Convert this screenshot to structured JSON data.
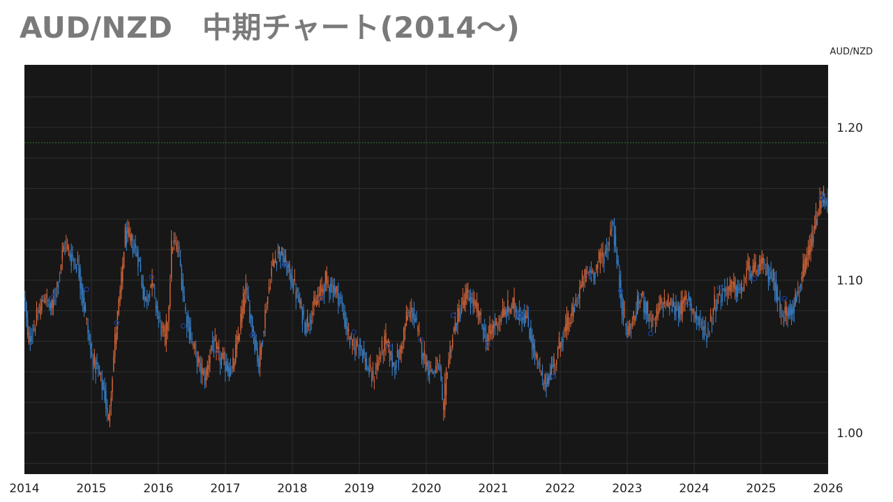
{
  "header": {
    "title": "AUD/NZD　中期チャート(2014～)"
  },
  "chart_data": {
    "type": "candlestick",
    "title": "AUD/NZD　中期チャート(2014～)",
    "series_label": "AUD/NZD",
    "xlabel": "",
    "ylabel": "",
    "x_tick_labels": [
      "2014",
      "2015",
      "2016",
      "2017",
      "2018",
      "2019",
      "2020",
      "2021",
      "2022",
      "2023",
      "2024",
      "2025",
      "2026"
    ],
    "y_tick_labels": [
      "1.20",
      "1.10",
      "1.00"
    ],
    "xlim": [
      2014,
      2026
    ],
    "ylim": [
      0.973,
      1.241
    ],
    "grid": true,
    "background": "#171717",
    "colors": {
      "up": "#e0693a",
      "down": "#3a88d6",
      "marker": "#1e3a8a",
      "ref_line": "#2e7d32"
    },
    "reference_line": 1.19,
    "path": [
      [
        2014.0,
        1.09
      ],
      [
        2014.05,
        1.06
      ],
      [
        2014.15,
        1.07
      ],
      [
        2014.3,
        1.09
      ],
      [
        2014.4,
        1.08
      ],
      [
        2014.5,
        1.1
      ],
      [
        2014.6,
        1.125
      ],
      [
        2014.7,
        1.115
      ],
      [
        2014.8,
        1.11
      ],
      [
        2014.9,
        1.08
      ],
      [
        2015.0,
        1.05
      ],
      [
        2015.1,
        1.04
      ],
      [
        2015.2,
        1.025
      ],
      [
        2015.25,
        1.005
      ],
      [
        2015.35,
        1.06
      ],
      [
        2015.45,
        1.1
      ],
      [
        2015.5,
        1.13
      ],
      [
        2015.6,
        1.125
      ],
      [
        2015.7,
        1.115
      ],
      [
        2015.8,
        1.085
      ],
      [
        2015.9,
        1.1
      ],
      [
        2016.0,
        1.075
      ],
      [
        2016.1,
        1.06
      ],
      [
        2016.15,
        1.08
      ],
      [
        2016.2,
        1.125
      ],
      [
        2016.3,
        1.12
      ],
      [
        2016.4,
        1.08
      ],
      [
        2016.5,
        1.06
      ],
      [
        2016.6,
        1.045
      ],
      [
        2016.7,
        1.035
      ],
      [
        2016.8,
        1.06
      ],
      [
        2016.9,
        1.05
      ],
      [
        2017.0,
        1.045
      ],
      [
        2017.1,
        1.04
      ],
      [
        2017.2,
        1.065
      ],
      [
        2017.3,
        1.095
      ],
      [
        2017.4,
        1.07
      ],
      [
        2017.5,
        1.045
      ],
      [
        2017.6,
        1.08
      ],
      [
        2017.7,
        1.11
      ],
      [
        2017.8,
        1.12
      ],
      [
        2017.9,
        1.11
      ],
      [
        2018.0,
        1.1
      ],
      [
        2018.1,
        1.085
      ],
      [
        2018.2,
        1.07
      ],
      [
        2018.3,
        1.08
      ],
      [
        2018.4,
        1.09
      ],
      [
        2018.5,
        1.1
      ],
      [
        2018.6,
        1.095
      ],
      [
        2018.7,
        1.09
      ],
      [
        2018.8,
        1.07
      ],
      [
        2018.9,
        1.055
      ],
      [
        2019.0,
        1.06
      ],
      [
        2019.1,
        1.045
      ],
      [
        2019.2,
        1.035
      ],
      [
        2019.3,
        1.05
      ],
      [
        2019.4,
        1.06
      ],
      [
        2019.5,
        1.045
      ],
      [
        2019.6,
        1.05
      ],
      [
        2019.7,
        1.075
      ],
      [
        2019.8,
        1.08
      ],
      [
        2019.9,
        1.06
      ],
      [
        2020.0,
        1.045
      ],
      [
        2020.1,
        1.04
      ],
      [
        2020.2,
        1.045
      ],
      [
        2020.25,
        1.008
      ],
      [
        2020.3,
        1.04
      ],
      [
        2020.4,
        1.065
      ],
      [
        2020.5,
        1.08
      ],
      [
        2020.6,
        1.09
      ],
      [
        2020.7,
        1.085
      ],
      [
        2020.8,
        1.075
      ],
      [
        2020.9,
        1.06
      ],
      [
        2021.0,
        1.07
      ],
      [
        2021.1,
        1.075
      ],
      [
        2021.2,
        1.08
      ],
      [
        2021.3,
        1.083
      ],
      [
        2021.4,
        1.078
      ],
      [
        2021.5,
        1.075
      ],
      [
        2021.6,
        1.055
      ],
      [
        2021.7,
        1.04
      ],
      [
        2021.75,
        1.03
      ],
      [
        2021.85,
        1.04
      ],
      [
        2021.95,
        1.05
      ],
      [
        2022.0,
        1.06
      ],
      [
        2022.1,
        1.07
      ],
      [
        2022.2,
        1.08
      ],
      [
        2022.3,
        1.095
      ],
      [
        2022.4,
        1.105
      ],
      [
        2022.5,
        1.105
      ],
      [
        2022.6,
        1.115
      ],
      [
        2022.7,
        1.12
      ],
      [
        2022.78,
        1.14
      ],
      [
        2022.85,
        1.11
      ],
      [
        2022.92,
        1.085
      ],
      [
        2023.0,
        1.065
      ],
      [
        2023.1,
        1.075
      ],
      [
        2023.2,
        1.09
      ],
      [
        2023.3,
        1.08
      ],
      [
        2023.4,
        1.07
      ],
      [
        2023.5,
        1.085
      ],
      [
        2023.6,
        1.085
      ],
      [
        2023.7,
        1.082
      ],
      [
        2023.8,
        1.08
      ],
      [
        2023.9,
        1.09
      ],
      [
        2024.0,
        1.078
      ],
      [
        2024.1,
        1.07
      ],
      [
        2024.2,
        1.065
      ],
      [
        2024.3,
        1.085
      ],
      [
        2024.4,
        1.09
      ],
      [
        2024.5,
        1.095
      ],
      [
        2024.6,
        1.095
      ],
      [
        2024.7,
        1.092
      ],
      [
        2024.8,
        1.108
      ],
      [
        2024.9,
        1.105
      ],
      [
        2025.0,
        1.11
      ],
      [
        2025.1,
        1.105
      ],
      [
        2025.2,
        1.1
      ],
      [
        2025.3,
        1.075
      ],
      [
        2025.4,
        1.08
      ],
      [
        2025.5,
        1.085
      ],
      [
        2025.6,
        1.1
      ],
      [
        2025.7,
        1.115
      ],
      [
        2025.8,
        1.135
      ],
      [
        2025.87,
        1.148
      ],
      [
        2025.93,
        1.155
      ],
      [
        2026.0,
        1.15
      ]
    ],
    "markers": [
      [
        2014.43,
        1.089
      ],
      [
        2014.93,
        1.094
      ],
      [
        2015.38,
        1.072
      ],
      [
        2015.9,
        1.102
      ],
      [
        2016.37,
        1.07
      ],
      [
        2016.88,
        1.053
      ],
      [
        2017.4,
        1.064
      ],
      [
        2017.88,
        1.11
      ],
      [
        2018.43,
        1.088
      ],
      [
        2018.92,
        1.066
      ],
      [
        2019.43,
        1.057
      ],
      [
        2019.92,
        1.061
      ],
      [
        2020.4,
        1.077
      ],
      [
        2020.92,
        1.058
      ],
      [
        2021.4,
        1.077
      ],
      [
        2021.9,
        1.037
      ],
      [
        2022.43,
        1.103
      ],
      [
        2022.9,
        1.093
      ],
      [
        2023.35,
        1.065
      ],
      [
        2023.9,
        1.085
      ],
      [
        2024.38,
        1.095
      ],
      [
        2024.9,
        1.101
      ],
      [
        2025.35,
        1.088
      ],
      [
        2025.9,
        1.154
      ]
    ]
  }
}
